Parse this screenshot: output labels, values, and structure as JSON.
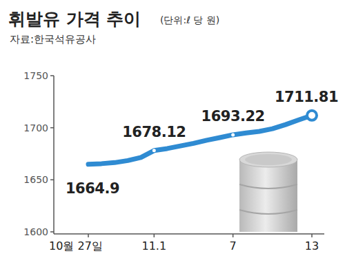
{
  "chart_data": {
    "type": "line",
    "title": "휘발유 가격 추이",
    "subtitle": "(단위:ℓ 당 원)",
    "source": "자료:한국석유공사",
    "categories": [
      "10월 27일",
      null,
      null,
      null,
      null,
      "11.1",
      null,
      null,
      null,
      null,
      null,
      "7",
      null,
      null,
      null,
      null,
      null,
      "13"
    ],
    "values": [
      1664.9,
      1665.5,
      1666.5,
      1668.5,
      1671.5,
      1678.12,
      1680,
      1682.5,
      1685,
      1688,
      1690.5,
      1693.22,
      1695,
      1696.5,
      1699,
      1703,
      1707.5,
      1711.81
    ],
    "value_labels": [
      "1664.9",
      null,
      null,
      null,
      null,
      "1678.12",
      null,
      null,
      null,
      null,
      null,
      "1693.22",
      null,
      null,
      null,
      null,
      null,
      "1711.81"
    ],
    "data_labels": true,
    "color": "#2f8bd2",
    "marker": "circle",
    "ylim": [
      1600,
      1750
    ],
    "yticks": [
      1600,
      1650,
      1700,
      1750
    ],
    "grid": false
  }
}
